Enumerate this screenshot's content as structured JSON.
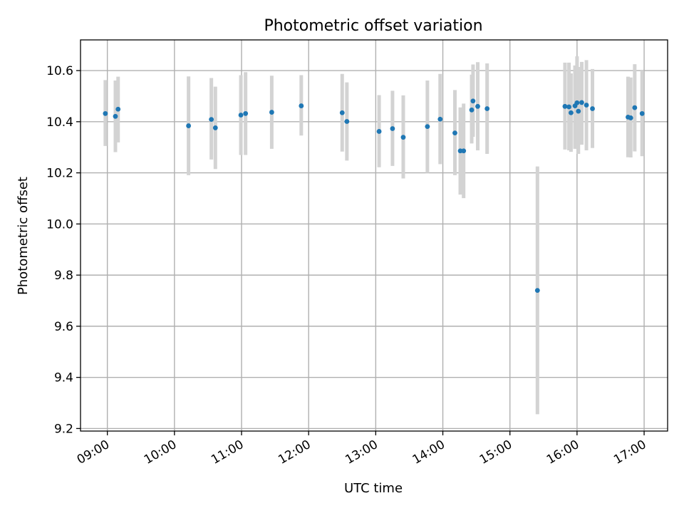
{
  "chart_data": {
    "type": "scatter",
    "title": "Photometric offset variation",
    "xlabel": "UTC time",
    "ylabel": "Photometric offset",
    "x_unit": "hours (UTC)",
    "xlim": [
      8.6,
      17.35
    ],
    "ylim": [
      9.19,
      10.72
    ],
    "grid": true,
    "x_ticks": [
      {
        "value": 9,
        "label": "09:00"
      },
      {
        "value": 10,
        "label": "10:00"
      },
      {
        "value": 11,
        "label": "11:00"
      },
      {
        "value": 12,
        "label": "12:00"
      },
      {
        "value": 13,
        "label": "13:00"
      },
      {
        "value": 14,
        "label": "14:00"
      },
      {
        "value": 15,
        "label": "15:00"
      },
      {
        "value": 16,
        "label": "16:00"
      },
      {
        "value": 17,
        "label": "17:00"
      }
    ],
    "y_ticks": [
      {
        "value": 9.2,
        "label": "9.2"
      },
      {
        "value": 9.4,
        "label": "9.4"
      },
      {
        "value": 9.6,
        "label": "9.6"
      },
      {
        "value": 9.8,
        "label": "9.8"
      },
      {
        "value": 10.0,
        "label": "10.0"
      },
      {
        "value": 10.2,
        "label": "10.2"
      },
      {
        "value": 10.4,
        "label": "10.4"
      },
      {
        "value": 10.6,
        "label": "10.6"
      }
    ],
    "colors": {
      "point": "#1f77b4",
      "errorbar": "#d3d3d3",
      "grid": "#b0b0b0"
    },
    "series": [
      {
        "points": [
          {
            "x": 8.97,
            "y": 10.432,
            "lo": 10.305,
            "hi": 10.563
          },
          {
            "x": 9.12,
            "y": 10.421,
            "lo": 10.281,
            "hi": 10.561
          },
          {
            "x": 9.16,
            "y": 10.449,
            "lo": 10.319,
            "hi": 10.576
          },
          {
            "x": 10.21,
            "y": 10.384,
            "lo": 10.191,
            "hi": 10.577
          },
          {
            "x": 10.55,
            "y": 10.409,
            "lo": 10.252,
            "hi": 10.571
          },
          {
            "x": 10.61,
            "y": 10.376,
            "lo": 10.215,
            "hi": 10.537
          },
          {
            "x": 10.99,
            "y": 10.426,
            "lo": 10.27,
            "hi": 10.582
          },
          {
            "x": 11.06,
            "y": 10.432,
            "lo": 10.27,
            "hi": 10.594
          },
          {
            "x": 11.45,
            "y": 10.437,
            "lo": 10.294,
            "hi": 10.58
          },
          {
            "x": 11.89,
            "y": 10.462,
            "lo": 10.346,
            "hi": 10.582
          },
          {
            "x": 12.5,
            "y": 10.435,
            "lo": 10.283,
            "hi": 10.587
          },
          {
            "x": 12.57,
            "y": 10.401,
            "lo": 10.248,
            "hi": 10.554
          },
          {
            "x": 13.05,
            "y": 10.362,
            "lo": 10.222,
            "hi": 10.504
          },
          {
            "x": 13.25,
            "y": 10.373,
            "lo": 10.227,
            "hi": 10.521
          },
          {
            "x": 13.41,
            "y": 10.339,
            "lo": 10.178,
            "hi": 10.503
          },
          {
            "x": 13.77,
            "y": 10.381,
            "lo": 10.2,
            "hi": 10.561
          },
          {
            "x": 13.96,
            "y": 10.41,
            "lo": 10.234,
            "hi": 10.587
          },
          {
            "x": 14.18,
            "y": 10.356,
            "lo": 10.191,
            "hi": 10.524
          },
          {
            "x": 14.26,
            "y": 10.286,
            "lo": 10.115,
            "hi": 10.456
          },
          {
            "x": 14.31,
            "y": 10.286,
            "lo": 10.101,
            "hi": 10.471
          },
          {
            "x": 14.43,
            "y": 10.446,
            "lo": 10.315,
            "hi": 10.584
          },
          {
            "x": 14.45,
            "y": 10.481,
            "lo": 10.341,
            "hi": 10.624
          },
          {
            "x": 14.52,
            "y": 10.46,
            "lo": 10.288,
            "hi": 10.633
          },
          {
            "x": 14.66,
            "y": 10.451,
            "lo": 10.274,
            "hi": 10.628
          },
          {
            "x": 15.41,
            "y": 9.74,
            "lo": 9.256,
            "hi": 10.225
          },
          {
            "x": 15.82,
            "y": 10.46,
            "lo": 10.291,
            "hi": 10.631
          },
          {
            "x": 15.88,
            "y": 10.458,
            "lo": 10.288,
            "hi": 10.631
          },
          {
            "x": 15.91,
            "y": 10.435,
            "lo": 10.282,
            "hi": 10.589
          },
          {
            "x": 15.97,
            "y": 10.462,
            "lo": 10.294,
            "hi": 10.62
          },
          {
            "x": 16.0,
            "y": 10.474,
            "lo": 10.294,
            "hi": 10.656
          },
          {
            "x": 16.02,
            "y": 10.441,
            "lo": 10.274,
            "hi": 10.614
          },
          {
            "x": 16.07,
            "y": 10.475,
            "lo": 10.31,
            "hi": 10.634
          },
          {
            "x": 16.14,
            "y": 10.465,
            "lo": 10.288,
            "hi": 10.641
          },
          {
            "x": 16.23,
            "y": 10.451,
            "lo": 10.297,
            "hi": 10.606
          },
          {
            "x": 16.76,
            "y": 10.418,
            "lo": 10.261,
            "hi": 10.576
          },
          {
            "x": 16.8,
            "y": 10.415,
            "lo": 10.26,
            "hi": 10.573
          },
          {
            "x": 16.86,
            "y": 10.455,
            "lo": 10.284,
            "hi": 10.625
          },
          {
            "x": 16.97,
            "y": 10.432,
            "lo": 10.265,
            "hi": 10.6
          }
        ]
      }
    ]
  }
}
